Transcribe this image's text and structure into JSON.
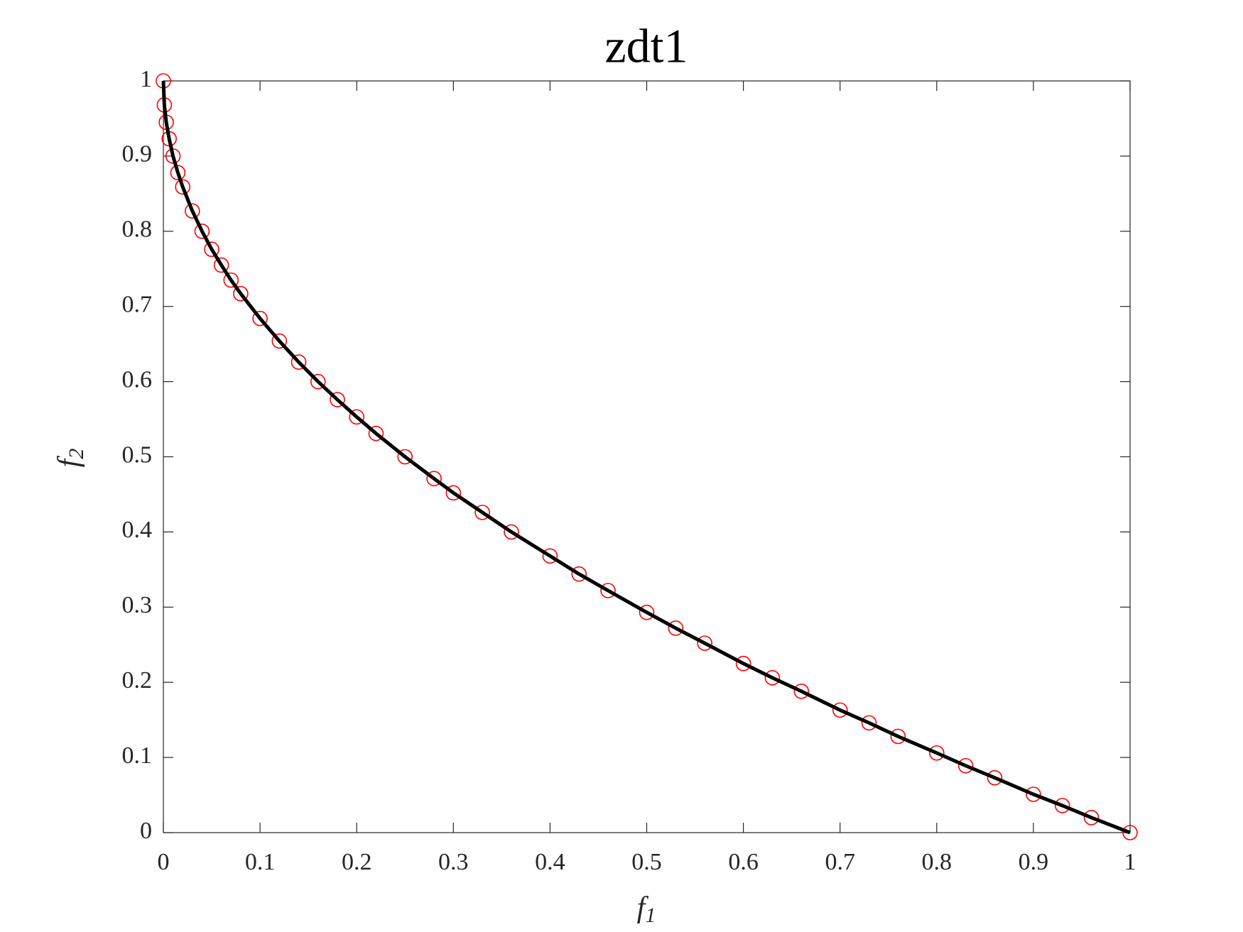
{
  "chart_data": {
    "type": "scatter",
    "title": "zdt1",
    "xlabel": {
      "base": "f",
      "sub": "1"
    },
    "ylabel": {
      "base": "f",
      "sub": "2"
    },
    "x": [
      0,
      0.001,
      0.003,
      0.006,
      0.01,
      0.015,
      0.02,
      0.03,
      0.04,
      0.05,
      0.06,
      0.07,
      0.08,
      0.1,
      0.12,
      0.14,
      0.16,
      0.18,
      0.2,
      0.22,
      0.25,
      0.28,
      0.3,
      0.33,
      0.36,
      0.4,
      0.43,
      0.46,
      0.5,
      0.53,
      0.56,
      0.6,
      0.63,
      0.66,
      0.7,
      0.73,
      0.76,
      0.8,
      0.83,
      0.86,
      0.9,
      0.93,
      0.96,
      1
    ],
    "series": [
      {
        "marker": "circle",
        "color": "#ff0000",
        "values": [
          1,
          0.968,
          0.945,
          0.923,
          0.9,
          0.878,
          0.859,
          0.827,
          0.8,
          0.776,
          0.755,
          0.735,
          0.717,
          0.684,
          0.654,
          0.626,
          0.6,
          0.576,
          0.553,
          0.531,
          0.5,
          0.471,
          0.452,
          0.426,
          0.4,
          0.368,
          0.344,
          0.322,
          0.293,
          0.272,
          0.252,
          0.225,
          0.206,
          0.188,
          0.163,
          0.146,
          0.128,
          0.106,
          0.089,
          0.073,
          0.051,
          0.036,
          0.02,
          0
        ]
      },
      {
        "marker": "line",
        "color": "#000000",
        "values": [
          1,
          0.968,
          0.945,
          0.923,
          0.9,
          0.878,
          0.859,
          0.827,
          0.8,
          0.776,
          0.755,
          0.735,
          0.717,
          0.684,
          0.654,
          0.626,
          0.6,
          0.576,
          0.553,
          0.531,
          0.5,
          0.471,
          0.452,
          0.426,
          0.4,
          0.368,
          0.344,
          0.322,
          0.293,
          0.272,
          0.252,
          0.225,
          0.206,
          0.188,
          0.163,
          0.146,
          0.128,
          0.106,
          0.089,
          0.073,
          0.051,
          0.036,
          0.02,
          0
        ]
      }
    ],
    "xlim": [
      0,
      1
    ],
    "ylim": [
      0,
      1
    ],
    "xticks": [
      0,
      0.1,
      0.2,
      0.3,
      0.4,
      0.5,
      0.6,
      0.7,
      0.8,
      0.9,
      1
    ],
    "yticks": [
      0,
      0.1,
      0.2,
      0.3,
      0.4,
      0.5,
      0.6,
      0.7,
      0.8,
      0.9,
      1
    ],
    "grid": false
  }
}
